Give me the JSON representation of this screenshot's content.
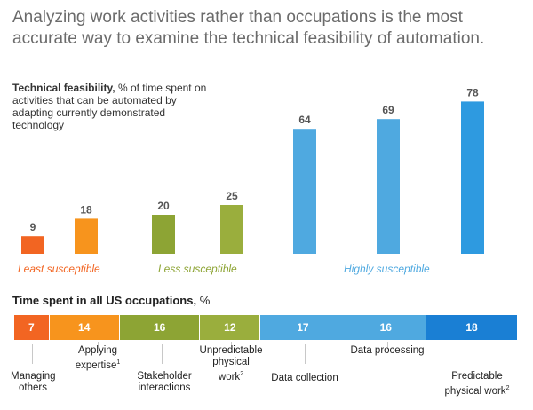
{
  "title": "Analyzing work activities rather than occupations is the most accurate way to examine the technical feasibility of automation.",
  "chart_data": {
    "type": "bar",
    "title": "Technical feasibility,",
    "subtitle": "% of time spent on activities that can be automated by adapting currently demonstrated technology",
    "categories": [
      "Managing others",
      "Applying expertise",
      "Stakeholder interactions",
      "Unpredictable physical work",
      "Data collection",
      "Data processing",
      "Predictable physical work"
    ],
    "values": [
      9,
      18,
      20,
      25,
      64,
      69,
      78
    ],
    "bar_colors": [
      "#f26522",
      "#f7941d",
      "#8da434",
      "#9aae3d",
      "#4fa9e0",
      "#4fa9e0",
      "#2e9ae0"
    ],
    "ylim": [
      0,
      100
    ],
    "groups": [
      {
        "label": "Least susceptible",
        "color": "#f26522"
      },
      {
        "label": "Less susceptible",
        "color": "#8da434"
      },
      {
        "label": "Highly susceptible",
        "color": "#4fa9e0"
      }
    ],
    "time_spent": {
      "title": "Time spent in all US occupations,",
      "unit": "%",
      "values": [
        7,
        14,
        16,
        12,
        17,
        16,
        18
      ],
      "colors": [
        "#f26522",
        "#f7941d",
        "#8da434",
        "#9aae3d",
        "#4fa9e0",
        "#4fa9e0",
        "#1a7fd4"
      ]
    },
    "labels": {
      "managing": [
        "Managing",
        "others"
      ],
      "applying": [
        "Applying",
        "expertise"
      ],
      "stakeholder": [
        "Stakeholder",
        "interactions"
      ],
      "unpredictable": [
        "Unpredictable",
        "physical",
        "work"
      ],
      "collection": "Data collection",
      "processing": "Data processing",
      "predictable": [
        "Predictable",
        "physical work"
      ],
      "footnote_applying": "1",
      "footnote_physical": "2"
    }
  }
}
